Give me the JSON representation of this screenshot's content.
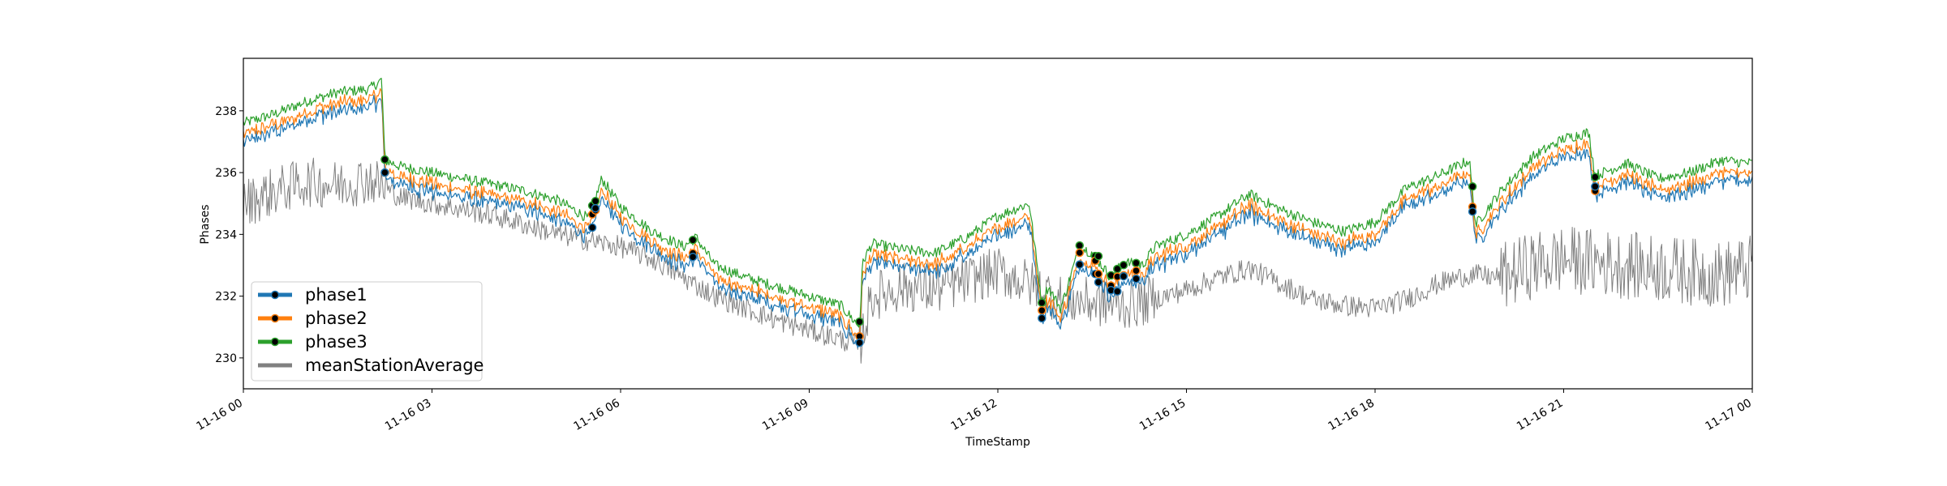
{
  "chart_data": {
    "type": "line",
    "xlabel": "TimeStamp",
    "ylabel": "Phases",
    "x_tick_labels": [
      "11-16 00",
      "11-16 03",
      "11-16 06",
      "11-16 09",
      "11-16 12",
      "11-16 15",
      "11-16 18",
      "11-16 21",
      "11-17 00"
    ],
    "x_tick_hours": [
      0,
      3,
      6,
      9,
      12,
      15,
      18,
      21,
      24
    ],
    "y_ticks": [
      230,
      232,
      234,
      236,
      238
    ],
    "xlim": [
      0,
      24
    ],
    "ylim": [
      229.0,
      239.7
    ],
    "grid": false,
    "legend_position": "lower-left",
    "series": [
      {
        "name": "phase1",
        "color": "#1f77b4",
        "marker_points": true
      },
      {
        "name": "phase2",
        "color": "#ff7f0e",
        "marker_points": true
      },
      {
        "name": "phase3",
        "color": "#2ca02c",
        "marker_points": true
      },
      {
        "name": "meanStationAverage",
        "color": "#808080",
        "marker_points": false
      }
    ],
    "phase3_trend": {
      "hours": [
        0,
        0.5,
        1.0,
        1.5,
        2.0,
        2.2,
        2.25,
        2.5,
        3.0,
        3.5,
        4.0,
        4.5,
        5.0,
        5.5,
        5.7,
        6.0,
        6.5,
        7.0,
        7.2,
        7.5,
        8.0,
        8.5,
        9.0,
        9.5,
        9.8,
        9.85,
        10.0,
        10.5,
        11.0,
        11.5,
        12.0,
        12.5,
        12.7,
        12.8,
        13.0,
        13.3,
        13.5,
        13.8,
        14.0,
        14.3,
        14.5,
        15.0,
        15.5,
        16.0,
        16.5,
        17.0,
        17.5,
        18.0,
        18.5,
        19.0,
        19.5,
        19.6,
        20.0,
        20.5,
        21.0,
        21.4,
        21.5,
        22.0,
        22.5,
        23.0,
        23.5,
        24.0
      ],
      "values": [
        237.6,
        237.9,
        238.3,
        238.6,
        238.7,
        239.0,
        236.4,
        236.2,
        236.0,
        235.8,
        235.6,
        235.4,
        235.1,
        234.5,
        235.8,
        234.9,
        234.1,
        233.6,
        233.9,
        233.0,
        232.6,
        232.3,
        232.0,
        231.7,
        231.0,
        233.1,
        233.7,
        233.5,
        233.4,
        233.9,
        234.6,
        235.0,
        231.8,
        232.3,
        231.6,
        233.6,
        233.4,
        232.6,
        233.1,
        233.0,
        233.6,
        234.0,
        234.6,
        235.3,
        234.8,
        234.4,
        234.1,
        234.4,
        235.5,
        235.9,
        236.4,
        234.3,
        235.4,
        236.5,
        237.1,
        237.3,
        235.9,
        236.3,
        235.8,
        236.0,
        236.4,
        236.3
      ]
    },
    "mean_trend": {
      "hours": [
        0,
        0.5,
        1.0,
        1.5,
        2.0,
        2.5,
        3.0,
        3.5,
        4.0,
        4.5,
        5.0,
        5.5,
        6.0,
        6.5,
        7.0,
        7.5,
        8.0,
        8.5,
        9.0,
        9.5,
        9.8,
        10.0,
        10.5,
        11.0,
        11.5,
        12.0,
        12.5,
        13.0,
        13.5,
        14.0,
        14.5,
        15.0,
        15.5,
        16.0,
        16.5,
        17.0,
        17.5,
        18.0,
        18.5,
        19.0,
        19.5,
        20.0,
        20.5,
        21.0,
        21.5,
        22.0,
        22.5,
        23.0,
        23.5,
        24.0
      ],
      "values": [
        235.0,
        235.4,
        235.7,
        235.6,
        235.8,
        235.2,
        235.0,
        234.8,
        234.6,
        234.3,
        234.0,
        233.8,
        233.6,
        233.2,
        232.6,
        232.0,
        231.6,
        231.2,
        230.9,
        230.6,
        230.4,
        232.0,
        232.3,
        232.2,
        232.5,
        232.8,
        232.4,
        231.9,
        231.8,
        231.7,
        231.9,
        232.2,
        232.6,
        232.9,
        232.4,
        231.9,
        231.7,
        231.6,
        231.9,
        232.4,
        232.7,
        232.6,
        233.0,
        233.2,
        233.1,
        233.0,
        232.9,
        232.8,
        232.7,
        232.9
      ]
    },
    "anomaly_hours": [
      2.25,
      5.55,
      5.6,
      7.15,
      9.8,
      12.7,
      13.3,
      13.55,
      13.6,
      13.8,
      13.9,
      14.0,
      14.2,
      19.55,
      21.5
    ]
  }
}
